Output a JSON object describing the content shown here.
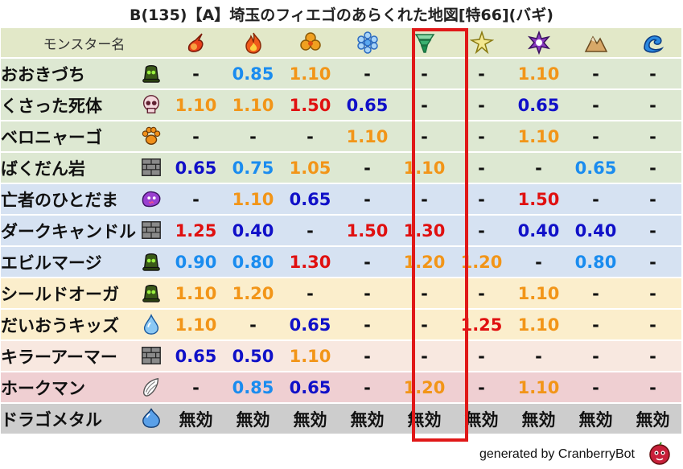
{
  "title": "B(135)【A】埼玉のフィエゴのあらくれた地図[特66](バギ)",
  "header": {
    "name_label": "モンスター名",
    "elements": [
      {
        "icon": "fire-bolt-icon",
        "color": "#e8401a"
      },
      {
        "icon": "flame-icon",
        "color": "#f05a1a"
      },
      {
        "icon": "blast-icon",
        "color": "#f0a020"
      },
      {
        "icon": "ice-crystal-icon",
        "color": "#5aa8f0"
      },
      {
        "icon": "tornado-icon",
        "color": "#3ab070"
      },
      {
        "icon": "lightning-icon",
        "color": "#e8d030"
      },
      {
        "icon": "dark-vortex-icon",
        "color": "#8a3ac0"
      },
      {
        "icon": "mountain-icon",
        "color": "#c08a4a"
      },
      {
        "icon": "wave-icon",
        "color": "#2a88e0"
      }
    ]
  },
  "rows": [
    {
      "name": "おおきづち",
      "type_icon": "slime-green-icon",
      "row_color": "green",
      "values": [
        "-",
        "0.85",
        "1.10",
        "-",
        "-",
        "-",
        "1.10",
        "-",
        "-"
      ],
      "colors": [
        "dash",
        "blue",
        "orange",
        "dash",
        "dash",
        "dash",
        "orange",
        "dash",
        "dash"
      ]
    },
    {
      "name": "くさった死体",
      "type_icon": "skull-icon",
      "row_color": "green",
      "values": [
        "1.10",
        "1.10",
        "1.50",
        "0.65",
        "-",
        "-",
        "0.65",
        "-",
        "-"
      ],
      "colors": [
        "orange",
        "orange",
        "red",
        "navy",
        "dash",
        "dash",
        "navy",
        "dash",
        "dash"
      ]
    },
    {
      "name": "ベロニャーゴ",
      "type_icon": "paw-icon",
      "row_color": "green",
      "values": [
        "-",
        "-",
        "-",
        "1.10",
        "-",
        "-",
        "1.10",
        "-",
        "-"
      ],
      "colors": [
        "dash",
        "dash",
        "dash",
        "orange",
        "dash",
        "dash",
        "orange",
        "dash",
        "dash"
      ]
    },
    {
      "name": "ばくだん岩",
      "type_icon": "brick-icon",
      "row_color": "green",
      "values": [
        "0.65",
        "0.75",
        "1.05",
        "-",
        "1.10",
        "-",
        "-",
        "0.65",
        "-"
      ],
      "colors": [
        "navy",
        "blue",
        "orange",
        "dash",
        "orange",
        "dash",
        "dash",
        "blue",
        "dash"
      ]
    },
    {
      "name": "亡者のひとだま",
      "type_icon": "ghost-icon",
      "row_color": "blue",
      "values": [
        "-",
        "1.10",
        "0.65",
        "-",
        "-",
        "-",
        "1.50",
        "-",
        "-"
      ],
      "colors": [
        "dash",
        "orange",
        "navy",
        "dash",
        "dash",
        "dash",
        "red",
        "dash",
        "dash"
      ]
    },
    {
      "name": "ダークキャンドル",
      "type_icon": "brick-icon",
      "row_color": "blue",
      "values": [
        "1.25",
        "0.40",
        "-",
        "1.50",
        "1.30",
        "-",
        "0.40",
        "0.40",
        "-"
      ],
      "colors": [
        "red",
        "navy",
        "dash",
        "red",
        "red",
        "dash",
        "navy",
        "navy",
        "dash"
      ]
    },
    {
      "name": "エビルマージ",
      "type_icon": "slime-green-icon",
      "row_color": "blue",
      "values": [
        "0.90",
        "0.80",
        "1.30",
        "-",
        "1.20",
        "1.20",
        "-",
        "0.80",
        "-"
      ],
      "colors": [
        "blue",
        "blue",
        "red",
        "dash",
        "orange",
        "orange",
        "dash",
        "blue",
        "dash"
      ]
    },
    {
      "name": "シールドオーガ",
      "type_icon": "slime-green-icon",
      "row_color": "yellow",
      "values": [
        "1.10",
        "1.20",
        "-",
        "-",
        "-",
        "-",
        "1.10",
        "-",
        "-"
      ],
      "colors": [
        "orange",
        "orange",
        "dash",
        "dash",
        "dash",
        "dash",
        "orange",
        "dash",
        "dash"
      ]
    },
    {
      "name": "だいおうキッズ",
      "type_icon": "water-drop-icon",
      "row_color": "yellow",
      "values": [
        "1.10",
        "-",
        "0.65",
        "-",
        "-",
        "1.25",
        "1.10",
        "-",
        "-"
      ],
      "colors": [
        "orange",
        "dash",
        "navy",
        "dash",
        "dash",
        "red",
        "orange",
        "dash",
        "dash"
      ]
    },
    {
      "name": "キラーアーマー",
      "type_icon": "brick-icon",
      "row_color": "pink",
      "values": [
        "0.65",
        "0.50",
        "1.10",
        "-",
        "-",
        "-",
        "-",
        "-",
        "-"
      ],
      "colors": [
        "navy",
        "navy",
        "orange",
        "dash",
        "dash",
        "dash",
        "dash",
        "dash",
        "dash"
      ]
    },
    {
      "name": "ホークマン",
      "type_icon": "wing-icon",
      "row_color": "rose",
      "values": [
        "-",
        "0.85",
        "0.65",
        "-",
        "1.20",
        "-",
        "1.10",
        "-",
        "-"
      ],
      "colors": [
        "dash",
        "blue",
        "navy",
        "dash",
        "orange",
        "dash",
        "orange",
        "dash",
        "dash"
      ]
    },
    {
      "name": "ドラゴメタル",
      "type_icon": "metal-slime-icon",
      "row_color": "grey",
      "values": [
        "無効",
        "無効",
        "無効",
        "無効",
        "無効",
        "無効",
        "無効",
        "無効",
        "無効"
      ],
      "colors": [
        "black",
        "black",
        "black",
        "black",
        "black",
        "black",
        "black",
        "black",
        "black"
      ]
    }
  ],
  "highlight_column": 4,
  "footer": {
    "text": "generated by CranberryBot",
    "icon": "cranberry-bot-icon"
  }
}
